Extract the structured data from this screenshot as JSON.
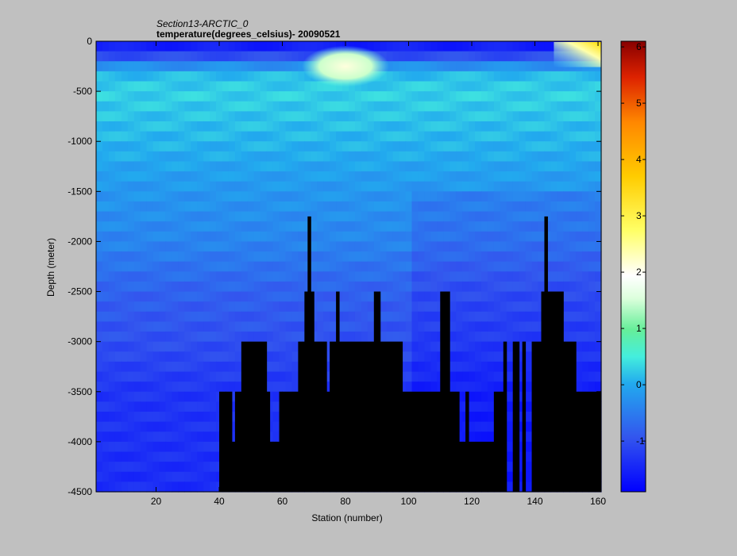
{
  "chart_data": {
    "type": "heatmap",
    "title": "Section13-ARCTIC_0",
    "subtitle": "temperature(degrees_celsius)- 20090521",
    "xlabel": "Station (number)",
    "ylabel": "Depth (meter)",
    "xlim": [
      1,
      161
    ],
    "ylim": [
      -4500,
      0
    ],
    "x_ticks": [
      20,
      40,
      60,
      80,
      100,
      120,
      140,
      160
    ],
    "x_tick_labels": [
      "20",
      "40",
      "60",
      "80",
      "100",
      "120",
      "140",
      "160"
    ],
    "y_ticks": [
      0,
      -500,
      -1000,
      -1500,
      -2000,
      -2500,
      -3000,
      -3500,
      -4000,
      -4500
    ],
    "y_tick_labels": [
      "0",
      "-500",
      "-1000",
      "-1500",
      "-2000",
      "-2500",
      "-3000",
      "-3500",
      "-4000",
      "-4500"
    ],
    "colorbar": {
      "range": [
        -1.9,
        6.1
      ],
      "ticks": [
        -1,
        0,
        1,
        2,
        3,
        4,
        5,
        6
      ],
      "tick_labels": [
        "-1",
        "0",
        "1",
        "2",
        "3",
        "4",
        "5",
        "6"
      ],
      "colormap": "jet-like with white at 2"
    },
    "no_data_color": "#000000",
    "background_color": "#c0c0c0",
    "temperature_profile_by_depth": [
      {
        "depth": 0,
        "value": -1.7
      },
      {
        "depth": -100,
        "value": -1.4
      },
      {
        "depth": -300,
        "value": 0.1
      },
      {
        "depth": -500,
        "value": 0.3
      },
      {
        "depth": -1000,
        "value": 0.1
      },
      {
        "depth": -1500,
        "value": -0.2
      },
      {
        "depth": -2000,
        "value": -0.4
      },
      {
        "depth": -2500,
        "value": -0.8
      },
      {
        "depth": -3000,
        "value": -1.0
      },
      {
        "depth": -3500,
        "value": -1.3
      },
      {
        "depth": -4500,
        "value": -1.4
      }
    ],
    "warm_features": [
      {
        "station": 80,
        "depth": -250,
        "value": 1.6
      },
      {
        "station": 160,
        "depth": -50,
        "value": 4.5
      }
    ],
    "bathymetry_no_data": [
      {
        "x": [
          40,
          42
        ],
        "top_depth": -3500
      },
      {
        "x": [
          42,
          44
        ],
        "top_depth": -3500
      },
      {
        "x": [
          44,
          45
        ],
        "top_depth": -4000
      },
      {
        "x": [
          45,
          47
        ],
        "top_depth": -3500
      },
      {
        "x": [
          47,
          55
        ],
        "top_depth": -3000
      },
      {
        "x": [
          55,
          56
        ],
        "top_depth": -3500
      },
      {
        "x": [
          56,
          57
        ],
        "top_depth": -4000
      },
      {
        "x": [
          57,
          58
        ],
        "top_depth": -4000
      },
      {
        "x": [
          58,
          59
        ],
        "top_depth": -4000
      },
      {
        "x": [
          59,
          60
        ],
        "top_depth": -3500
      },
      {
        "x": [
          60,
          65
        ],
        "top_depth": -3500
      },
      {
        "x": [
          65,
          67
        ],
        "top_depth": -3000
      },
      {
        "x": [
          67,
          68
        ],
        "top_depth": -2500
      },
      {
        "x": [
          68,
          69
        ],
        "top_depth": -1750
      },
      {
        "x": [
          69,
          70
        ],
        "top_depth": -2500
      },
      {
        "x": [
          70,
          74
        ],
        "top_depth": -3000
      },
      {
        "x": [
          74,
          75
        ],
        "top_depth": -3500
      },
      {
        "x": [
          75,
          77
        ],
        "top_depth": -3000
      },
      {
        "x": [
          77,
          78
        ],
        "top_depth": -2500
      },
      {
        "x": [
          78,
          89
        ],
        "top_depth": -3000
      },
      {
        "x": [
          89,
          91
        ],
        "top_depth": -2500
      },
      {
        "x": [
          91,
          98
        ],
        "top_depth": -3000
      },
      {
        "x": [
          98,
          110
        ],
        "top_depth": -3500
      },
      {
        "x": [
          110,
          113
        ],
        "top_depth": -2500
      },
      {
        "x": [
          113,
          116
        ],
        "top_depth": -3500
      },
      {
        "x": [
          116,
          118
        ],
        "top_depth": -4000
      },
      {
        "x": [
          118,
          119
        ],
        "top_depth": -3500
      },
      {
        "x": [
          119,
          127
        ],
        "top_depth": -4000
      },
      {
        "x": [
          127,
          130
        ],
        "top_depth": -3500
      },
      {
        "x": [
          130,
          131
        ],
        "top_depth": -3000
      },
      {
        "x": [
          133,
          135
        ],
        "top_depth": -3000
      },
      {
        "x": [
          136,
          137
        ],
        "top_depth": -3000
      },
      {
        "x": [
          139,
          142
        ],
        "top_depth": -3000
      },
      {
        "x": [
          142,
          143
        ],
        "top_depth": -2500
      },
      {
        "x": [
          143,
          144
        ],
        "top_depth": -1750
      },
      {
        "x": [
          144,
          149
        ],
        "top_depth": -2500
      },
      {
        "x": [
          149,
          153
        ],
        "top_depth": -3000
      },
      {
        "x": [
          153,
          161
        ],
        "top_depth": -3500
      }
    ]
  }
}
